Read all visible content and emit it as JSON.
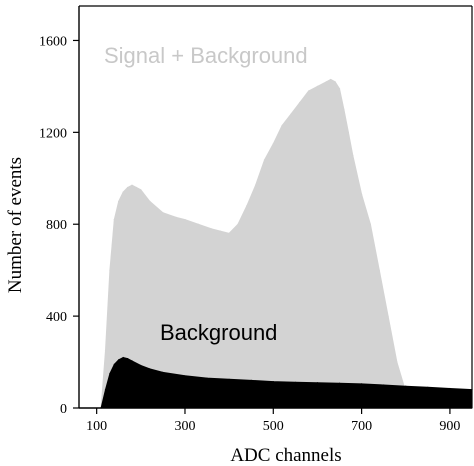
{
  "chart_data": {
    "type": "area",
    "xlabel": "ADC channels",
    "ylabel": "Number of events",
    "xlim": [
      60,
      950
    ],
    "ylim": [
      0,
      1750
    ],
    "xticks": [
      100,
      300,
      500,
      700,
      900
    ],
    "yticks": [
      0,
      400,
      800,
      1200,
      1600
    ],
    "x_tick_labels": [
      "100",
      "300",
      "500",
      "700",
      "900"
    ],
    "y_tick_labels": [
      "0",
      "400",
      "800",
      "1200",
      "1600"
    ],
    "grid": false,
    "legend": "none",
    "annotations": [
      {
        "text": "Signal + Background",
        "color": "#c8c8c8"
      },
      {
        "text": "Background",
        "color": "#000000"
      }
    ],
    "series": [
      {
        "name": "Signal + Background",
        "color": "#d3d3d3",
        "x": [
          110,
          120,
          130,
          140,
          150,
          160,
          170,
          180,
          190,
          200,
          220,
          250,
          280,
          300,
          330,
          360,
          380,
          400,
          420,
          440,
          460,
          480,
          500,
          520,
          540,
          560,
          580,
          600,
          620,
          630,
          640,
          650,
          660,
          670,
          680,
          700,
          720,
          740,
          760,
          780,
          800,
          820,
          950
        ],
        "values": [
          0,
          250,
          600,
          820,
          900,
          940,
          960,
          970,
          960,
          950,
          900,
          850,
          830,
          820,
          800,
          780,
          770,
          760,
          800,
          880,
          970,
          1080,
          1150,
          1230,
          1280,
          1330,
          1380,
          1400,
          1420,
          1430,
          1420,
          1390,
          1300,
          1200,
          1100,
          930,
          800,
          600,
          400,
          200,
          70,
          30,
          20
        ]
      },
      {
        "name": "Background",
        "color": "#000000",
        "x": [
          110,
          120,
          130,
          140,
          150,
          160,
          170,
          180,
          200,
          220,
          250,
          300,
          350,
          400,
          450,
          500,
          550,
          600,
          650,
          700,
          750,
          800,
          850,
          900,
          950
        ],
        "values": [
          0,
          80,
          150,
          190,
          210,
          220,
          215,
          205,
          185,
          170,
          155,
          140,
          130,
          125,
          120,
          115,
          112,
          110,
          108,
          105,
          100,
          95,
          90,
          85,
          80
        ]
      }
    ]
  }
}
